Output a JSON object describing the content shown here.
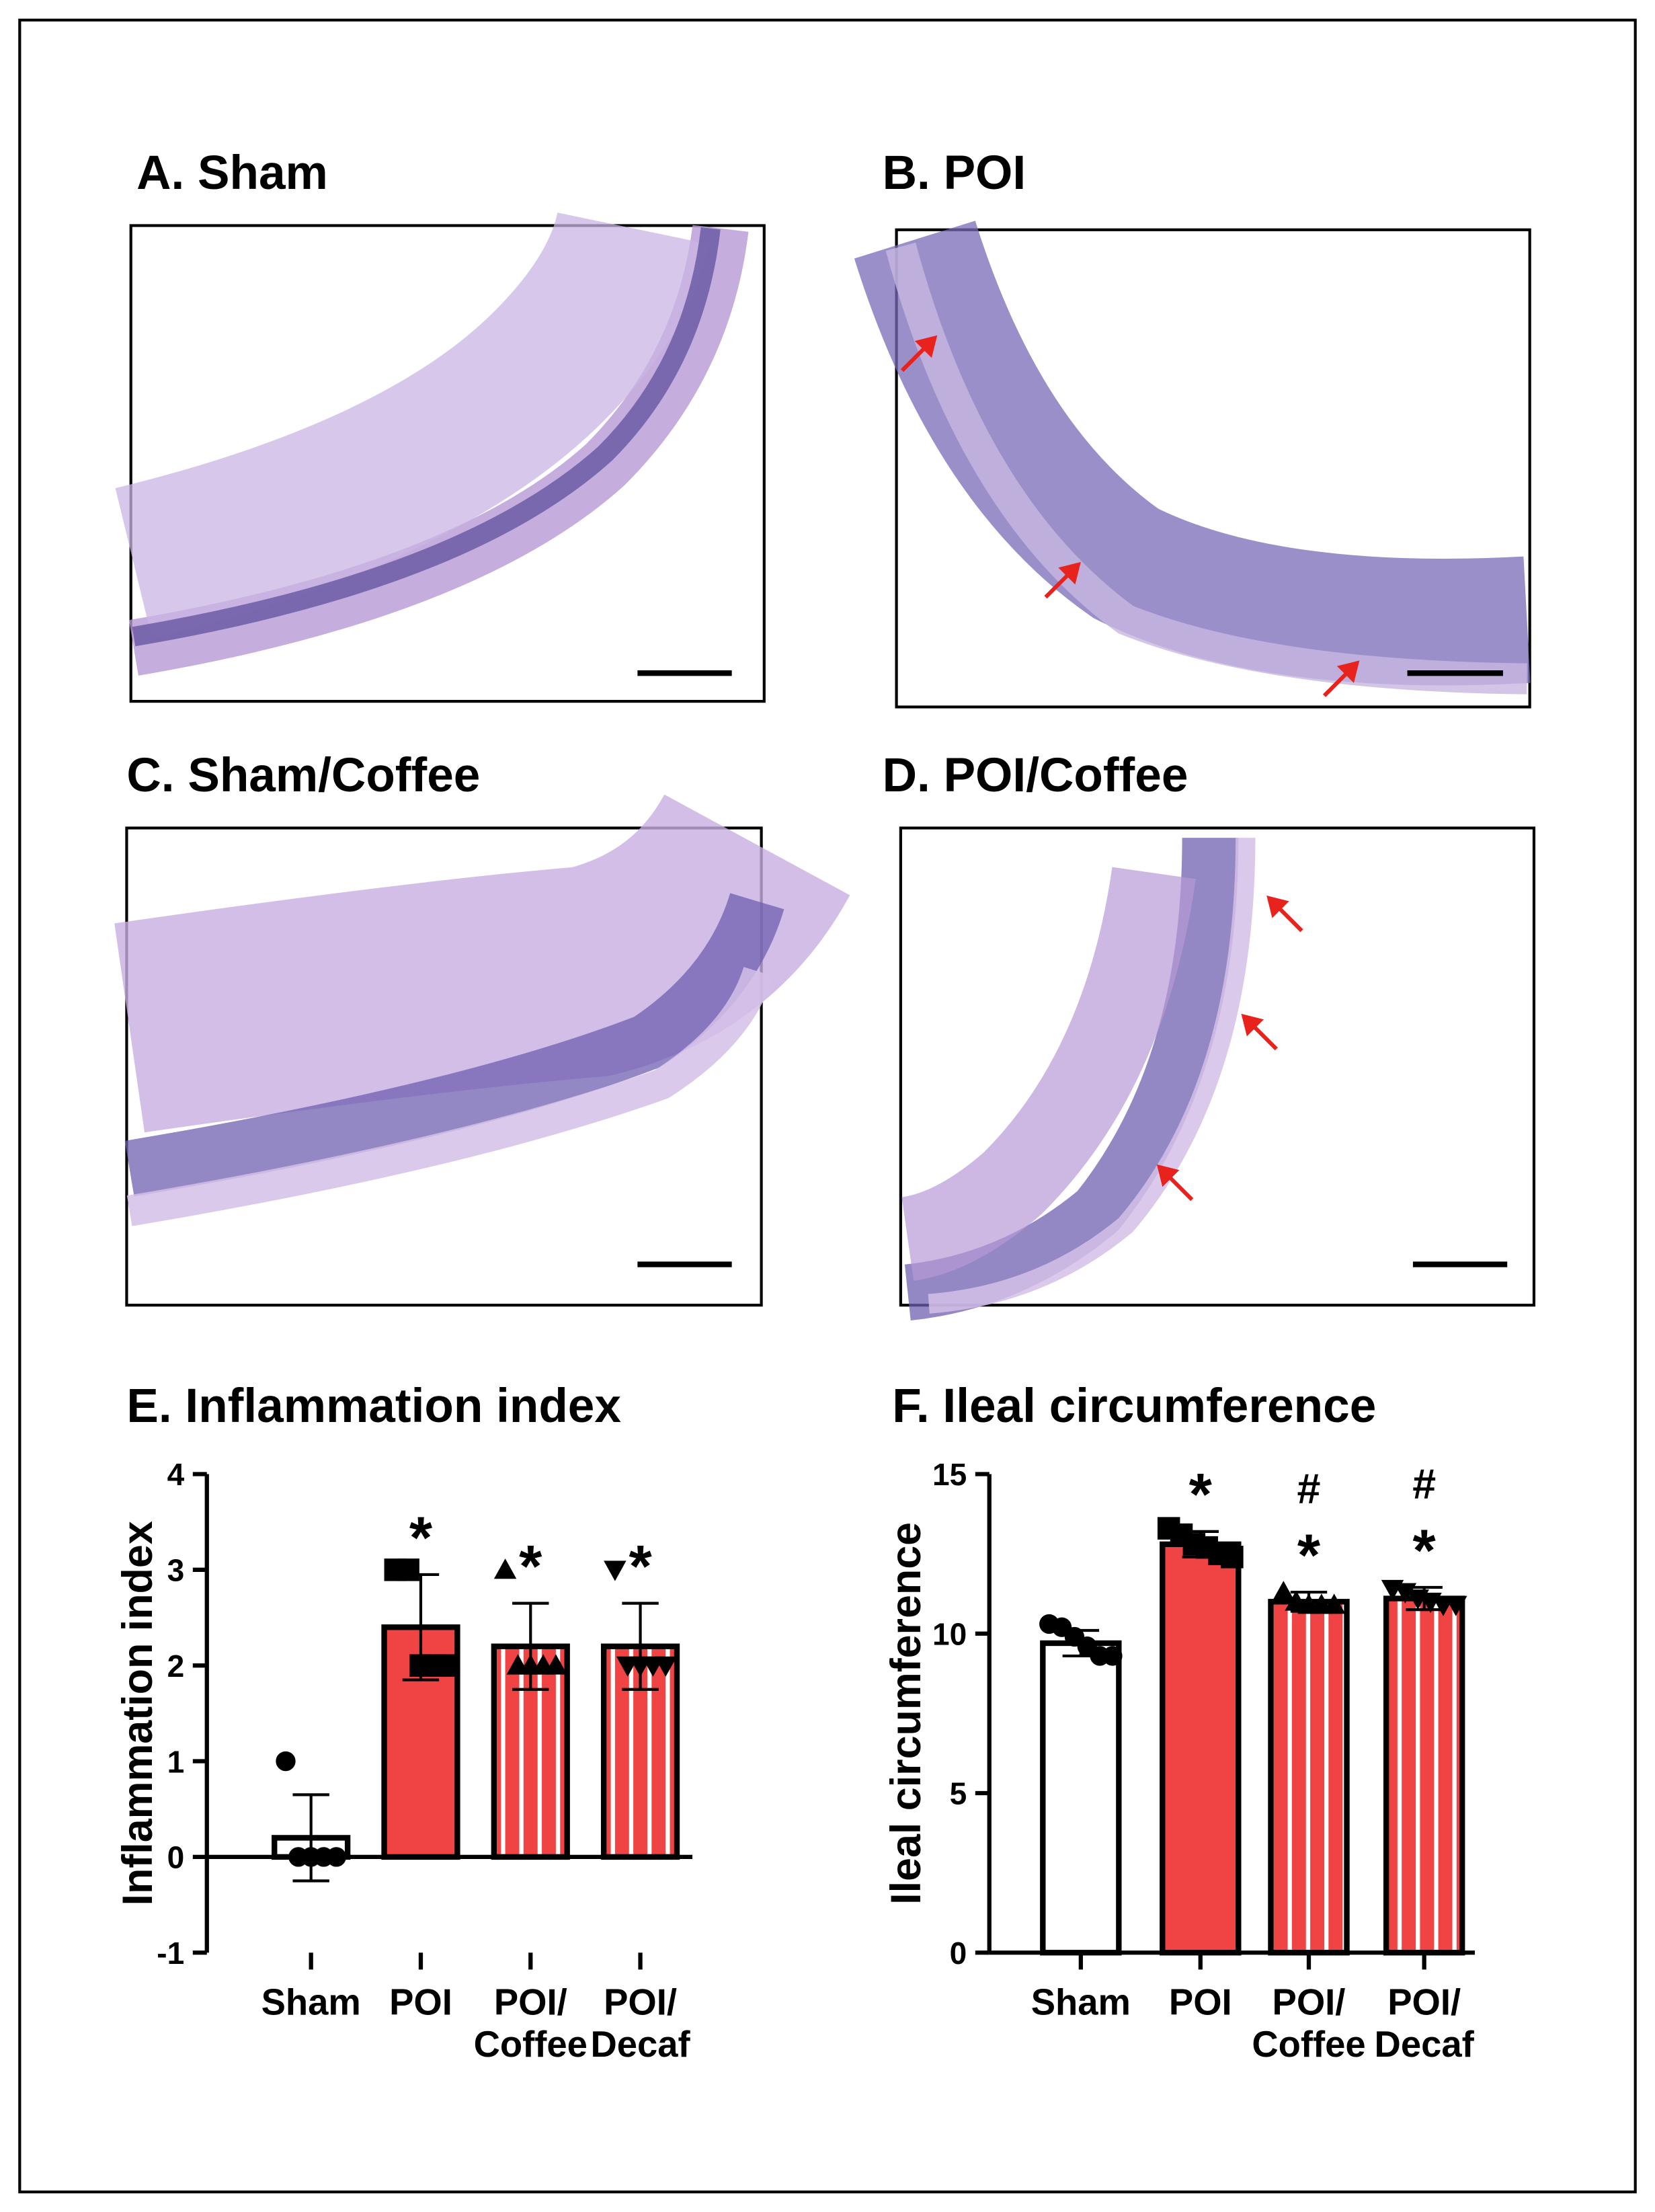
{
  "panels": [
    {
      "title": "A. Sham"
    },
    {
      "title": "B. POI"
    },
    {
      "title": "C. Sham/Coffee"
    },
    {
      "title": "D. POI/Coffee"
    }
  ],
  "chart_data": [
    {
      "type": "bar",
      "title": "E. Inflammation index",
      "y_label": "Inflammation index",
      "categories": [
        "Sham",
        "POI",
        "POI/\nCoffee",
        "POI/\nDecaf"
      ],
      "values": [
        0.2,
        2.4,
        2.2,
        2.2
      ],
      "errors": [
        0.45,
        0.55,
        0.45,
        0.45
      ],
      "points": [
        [
          1,
          0,
          0,
          0,
          0
        ],
        [
          3,
          3,
          2,
          2,
          2
        ],
        [
          3,
          2,
          2,
          2,
          2
        ],
        [
          3,
          2,
          2,
          2,
          2
        ]
      ],
      "markers": [
        "circle",
        "square",
        "triangle-up",
        "triangle-down"
      ],
      "colors": [
        "#ffffff",
        "#f04343",
        "#f04343",
        "#f04343"
      ],
      "striped": [
        false,
        false,
        true,
        true
      ],
      "annotations": [
        null,
        [
          "*"
        ],
        [
          "*"
        ],
        [
          "*"
        ]
      ],
      "ylim": [
        -1,
        4
      ],
      "yticks": [
        -1,
        0,
        1,
        2,
        3,
        4
      ]
    },
    {
      "type": "bar",
      "title": "F. Ileal circumference",
      "y_label": "Ileal circumference",
      "categories": [
        "Sham",
        "POI",
        "POI/\nCoffee",
        "POI/\nDecaf"
      ],
      "values": [
        9.7,
        12.8,
        11.0,
        11.1
      ],
      "errors": [
        0.4,
        0.4,
        0.3,
        0.35
      ],
      "points": [
        [
          10.3,
          10.2,
          9.9,
          9.6,
          9.3,
          9.3
        ],
        [
          13.3,
          13.1,
          12.8,
          12.7,
          12.5,
          12.4
        ],
        [
          11.3,
          11.0,
          10.9,
          10.9,
          10.9
        ],
        [
          11.4,
          11.3,
          11.1,
          11.0,
          10.9,
          10.9
        ]
      ],
      "markers": [
        "circle",
        "square",
        "triangle-up",
        "triangle-down"
      ],
      "colors": [
        "#ffffff",
        "#f04343",
        "#f04343",
        "#f04343"
      ],
      "striped": [
        false,
        false,
        true,
        true
      ],
      "annotations": [
        null,
        [
          "*"
        ],
        [
          "#",
          "*"
        ],
        [
          "#",
          "*"
        ]
      ],
      "ylim": [
        0,
        15
      ],
      "yticks": [
        0,
        5,
        10,
        15
      ]
    }
  ]
}
